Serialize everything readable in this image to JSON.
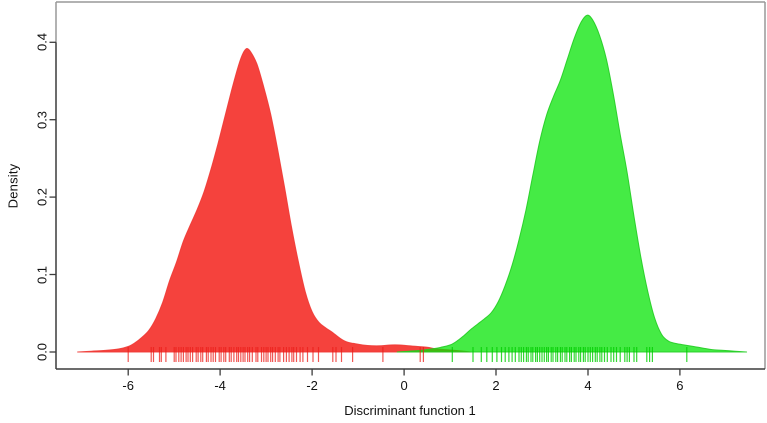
{
  "figure": {
    "background": "#ffffff"
  },
  "chart_data": {
    "type": "density-area",
    "title": "",
    "xlabel": "Discriminant function 1",
    "ylabel": "Density",
    "x_tick_labels": [
      "-6",
      "-4",
      "-2",
      "0",
      "2",
      "4",
      "6"
    ],
    "x_tick_values": [
      -6,
      -4,
      -2,
      0,
      2,
      4,
      6
    ],
    "y_tick_labels": [
      "0.0",
      "0.1",
      "0.2",
      "0.3",
      "0.4"
    ],
    "y_tick_values": [
      0,
      0.1,
      0.2,
      0.3,
      0.4
    ],
    "xlim": [
      -7.57,
      7.85
    ],
    "ylim": [
      -0.022,
      0.452
    ],
    "grid": false,
    "legend": false,
    "frame_color": "#989898",
    "axis_color": "#3c3c3c",
    "text_color": "#111111",
    "series": [
      {
        "name": "group-1-red",
        "color": "#f5423d",
        "stroke": "#ee3a35",
        "fill_opacity": 1,
        "points": [
          [
            -7.1,
            0
          ],
          [
            -6.8,
            0.001
          ],
          [
            -6.5,
            0.002
          ],
          [
            -6.2,
            0.004
          ],
          [
            -6.0,
            0.007
          ],
          [
            -5.85,
            0.012
          ],
          [
            -5.7,
            0.019
          ],
          [
            -5.55,
            0.028
          ],
          [
            -5.4,
            0.043
          ],
          [
            -5.25,
            0.064
          ],
          [
            -5.1,
            0.092
          ],
          [
            -4.95,
            0.116
          ],
          [
            -4.8,
            0.143
          ],
          [
            -4.65,
            0.164
          ],
          [
            -4.5,
            0.184
          ],
          [
            -4.35,
            0.207
          ],
          [
            -4.2,
            0.236
          ],
          [
            -4.05,
            0.268
          ],
          [
            -3.9,
            0.303
          ],
          [
            -3.75,
            0.338
          ],
          [
            -3.6,
            0.37
          ],
          [
            -3.5,
            0.386
          ],
          [
            -3.42,
            0.392
          ],
          [
            -3.34,
            0.388
          ],
          [
            -3.2,
            0.372
          ],
          [
            -3.05,
            0.342
          ],
          [
            -2.9,
            0.307
          ],
          [
            -2.75,
            0.262
          ],
          [
            -2.6,
            0.213
          ],
          [
            -2.45,
            0.162
          ],
          [
            -2.3,
            0.117
          ],
          [
            -2.15,
            0.078
          ],
          [
            -2.0,
            0.052
          ],
          [
            -1.85,
            0.038
          ],
          [
            -1.7,
            0.031
          ],
          [
            -1.55,
            0.025
          ],
          [
            -1.4,
            0.018
          ],
          [
            -1.25,
            0.013
          ],
          [
            -1.1,
            0.011
          ],
          [
            -0.9,
            0.009
          ],
          [
            -0.7,
            0.008
          ],
          [
            -0.5,
            0.008
          ],
          [
            -0.3,
            0.009
          ],
          [
            -0.1,
            0.009
          ],
          [
            0.1,
            0.008
          ],
          [
            0.3,
            0.007
          ],
          [
            0.5,
            0.006
          ],
          [
            0.7,
            0.004
          ],
          [
            0.9,
            0.003
          ],
          [
            1.1,
            0.002
          ],
          [
            1.3,
            0.001
          ],
          [
            1.45,
            0
          ]
        ],
        "rug_color": "rgba(235,30,25,0.75)",
        "rug": [
          -6.0,
          -5.5,
          -5.45,
          -5.32,
          -5.28,
          -5.18,
          -5.0,
          -4.96,
          -4.9,
          -4.85,
          -4.8,
          -4.74,
          -4.7,
          -4.65,
          -4.6,
          -4.52,
          -4.48,
          -4.42,
          -4.38,
          -4.3,
          -4.26,
          -4.2,
          -4.15,
          -4.1,
          -4.02,
          -3.98,
          -3.92,
          -3.88,
          -3.8,
          -3.76,
          -3.7,
          -3.64,
          -3.6,
          -3.55,
          -3.5,
          -3.46,
          -3.4,
          -3.36,
          -3.3,
          -3.22,
          -3.18,
          -3.1,
          -3.05,
          -3.0,
          -2.96,
          -2.9,
          -2.86,
          -2.8,
          -2.74,
          -2.7,
          -2.62,
          -2.56,
          -2.5,
          -2.44,
          -2.4,
          -2.34,
          -2.26,
          -2.2,
          -2.1,
          -1.98,
          -1.86,
          -1.55,
          -1.48,
          -1.36,
          -1.12,
          -0.46,
          0.35,
          0.42
        ]
      },
      {
        "name": "group-2-green",
        "color": "#00e400",
        "stroke": "#22cc22",
        "fill_opacity": 0.73,
        "points": [
          [
            -0.15,
            0
          ],
          [
            0.1,
            0.001
          ],
          [
            0.35,
            0.002
          ],
          [
            0.6,
            0.004
          ],
          [
            0.8,
            0.006
          ],
          [
            1.0,
            0.009
          ],
          [
            1.15,
            0.014
          ],
          [
            1.3,
            0.021
          ],
          [
            1.45,
            0.029
          ],
          [
            1.6,
            0.036
          ],
          [
            1.75,
            0.043
          ],
          [
            1.9,
            0.051
          ],
          [
            2.05,
            0.065
          ],
          [
            2.2,
            0.086
          ],
          [
            2.35,
            0.112
          ],
          [
            2.5,
            0.145
          ],
          [
            2.65,
            0.183
          ],
          [
            2.8,
            0.228
          ],
          [
            2.95,
            0.272
          ],
          [
            3.1,
            0.306
          ],
          [
            3.25,
            0.33
          ],
          [
            3.4,
            0.351
          ],
          [
            3.55,
            0.378
          ],
          [
            3.7,
            0.405
          ],
          [
            3.85,
            0.426
          ],
          [
            3.98,
            0.435
          ],
          [
            4.1,
            0.429
          ],
          [
            4.25,
            0.409
          ],
          [
            4.4,
            0.378
          ],
          [
            4.55,
            0.333
          ],
          [
            4.7,
            0.281
          ],
          [
            4.85,
            0.232
          ],
          [
            5.0,
            0.175
          ],
          [
            5.15,
            0.122
          ],
          [
            5.3,
            0.078
          ],
          [
            5.45,
            0.044
          ],
          [
            5.6,
            0.023
          ],
          [
            5.75,
            0.014
          ],
          [
            5.9,
            0.011
          ],
          [
            6.1,
            0.009
          ],
          [
            6.3,
            0.007
          ],
          [
            6.5,
            0.005
          ],
          [
            6.7,
            0.003
          ],
          [
            6.95,
            0.002
          ],
          [
            7.2,
            0.001
          ],
          [
            7.45,
            0
          ]
        ],
        "rug_color": "rgba(0,205,0,0.8)",
        "rug": [
          1.05,
          1.5,
          1.68,
          1.8,
          1.92,
          2.02,
          2.12,
          2.2,
          2.28,
          2.35,
          2.42,
          2.5,
          2.55,
          2.6,
          2.66,
          2.7,
          2.76,
          2.8,
          2.86,
          2.9,
          2.95,
          3.0,
          3.05,
          3.1,
          3.14,
          3.2,
          3.24,
          3.3,
          3.34,
          3.4,
          3.44,
          3.5,
          3.54,
          3.6,
          3.64,
          3.7,
          3.74,
          3.8,
          3.84,
          3.9,
          3.94,
          4.0,
          4.05,
          4.1,
          4.16,
          4.2,
          4.26,
          4.3,
          4.36,
          4.42,
          4.5,
          4.56,
          4.62,
          4.7,
          4.8,
          4.85,
          4.9,
          5.0,
          5.06,
          5.28,
          5.34,
          5.4,
          6.15
        ]
      }
    ]
  }
}
